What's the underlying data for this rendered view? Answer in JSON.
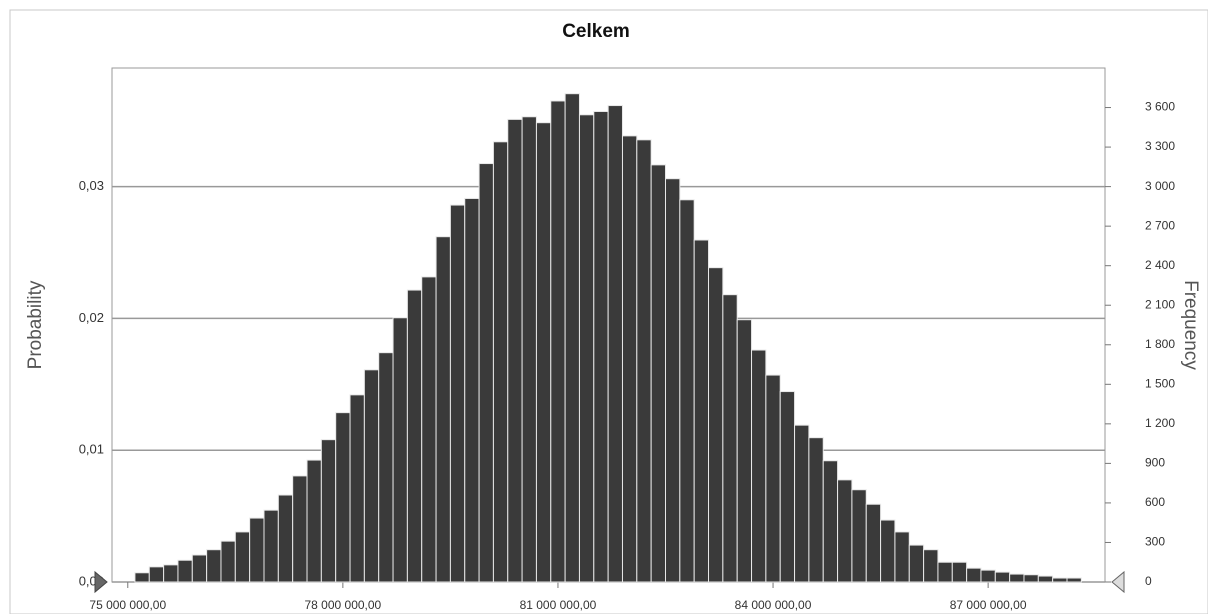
{
  "chart_data": {
    "type": "histogram",
    "title": "Celkem",
    "y_label": "Probability",
    "y2_label": "Frequency",
    "bins": [
      75100000,
      75300000,
      75500000,
      75700000,
      75900000,
      76100000,
      76300000,
      76500000,
      76700000,
      76900000,
      77100000,
      77300000,
      77500000,
      77700000,
      77900000,
      78100000,
      78300000,
      78500000,
      78700000,
      78900000,
      79100000,
      79300000,
      79500000,
      79700000,
      79900000,
      80100000,
      80300000,
      80500000,
      80700000,
      80900000,
      81100000,
      81300000,
      81500000,
      81700000,
      81900000,
      82100000,
      82300000,
      82500000,
      82700000,
      82900000,
      83100000,
      83300000,
      83500000,
      83700000,
      83900000,
      84100000,
      84300000,
      84500000,
      84700000,
      84900000,
      85100000,
      85300000,
      85500000,
      85700000,
      85900000,
      86100000,
      86300000,
      86500000,
      86700000,
      86900000,
      87100000,
      87300000,
      87500000,
      87700000,
      87900000,
      88100000,
      88300000
    ],
    "values": [
      70,
      115,
      130,
      165,
      205,
      245,
      310,
      380,
      485,
      545,
      660,
      805,
      925,
      1080,
      1285,
      1420,
      1610,
      1740,
      2005,
      2215,
      2315,
      2620,
      2860,
      2910,
      3175,
      3340,
      3510,
      3530,
      3485,
      3650,
      3705,
      3545,
      3570,
      3615,
      3385,
      3355,
      3165,
      3060,
      2900,
      2595,
      2385,
      2180,
      1990,
      1760,
      1570,
      1445,
      1190,
      1095,
      920,
      775,
      700,
      590,
      470,
      380,
      280,
      245,
      150,
      150,
      105,
      90,
      75,
      60,
      55,
      45,
      30,
      30
    ],
    "color": "#3a3a3a",
    "xlim": [
      74780000,
      88630000
    ],
    "xticks": [
      {
        "value": 75000000,
        "label": "75 000 000,00"
      },
      {
        "value": 78000000,
        "label": "78 000 000,00"
      },
      {
        "value": 81000000,
        "label": "81 000 000,00"
      },
      {
        "value": 84000000,
        "label": "84 000 000,00"
      },
      {
        "value": 87000000,
        "label": "87 000 000,00"
      }
    ],
    "ylim": [
      0,
      0.039
    ],
    "yticks": [
      {
        "value": 0,
        "label": "0,00"
      },
      {
        "value": 0.01,
        "label": "0,01"
      },
      {
        "value": 0.02,
        "label": "0,02"
      },
      {
        "value": 0.03,
        "label": "0,03"
      }
    ],
    "y2lim": [
      0,
      3900
    ],
    "y2ticks": [
      0,
      300,
      600,
      900,
      {
        "value": 1200,
        "label": "1 200"
      },
      {
        "value": 1500,
        "label": "1 500"
      },
      {
        "value": 1800,
        "label": "1 800"
      },
      {
        "value": 2100,
        "label": "2 100"
      },
      {
        "value": 2400,
        "label": "2 400"
      },
      {
        "value": 2700,
        "label": "2 700"
      },
      {
        "value": 3000,
        "label": "3 000"
      },
      {
        "value": 3300,
        "label": "3 300"
      },
      {
        "value": 3600,
        "label": "3 600"
      }
    ],
    "grid": true
  }
}
